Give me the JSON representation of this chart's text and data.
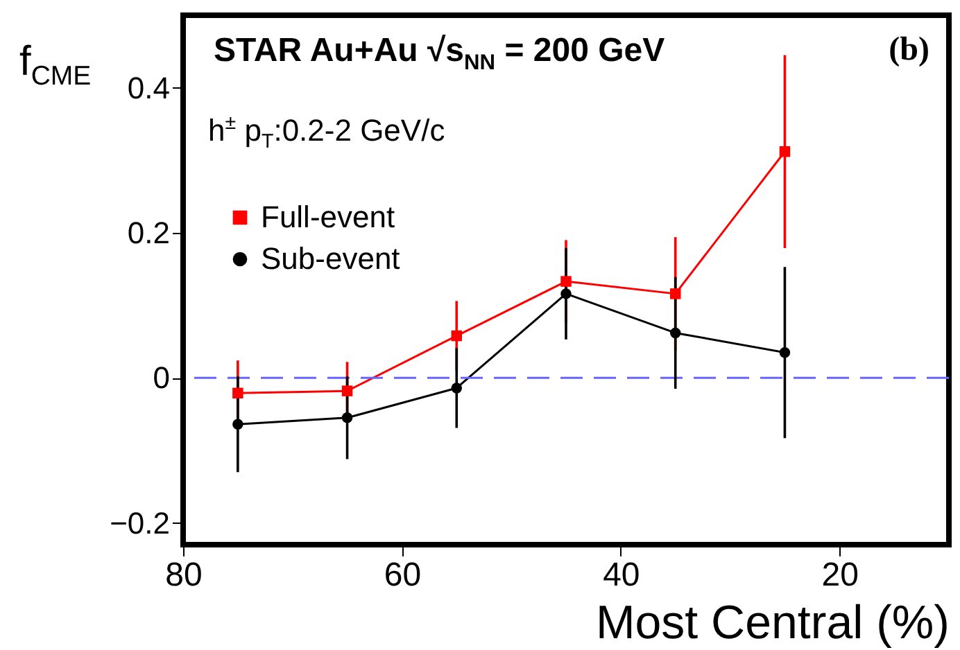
{
  "chart_data": {
    "type": "line",
    "title": "STAR Au+Au √s$_{NN}$ = 200 GeV",
    "xlabel": "Most Central (%)",
    "ylabel": "f$_{CME}$",
    "annotations": [
      "(b)",
      "h$^{±}$ p$_{T}$:0.2-2 GeV/c"
    ],
    "x": [
      75,
      65,
      55,
      45,
      35,
      25
    ],
    "series": [
      {
        "name": "Full-event",
        "color": "#ff0000",
        "marker": "square",
        "values": [
          -0.021,
          -0.018,
          0.058,
          0.133,
          0.116,
          0.312
        ],
        "errors": [
          0.045,
          0.04,
          0.048,
          0.057,
          0.078,
          0.133
        ]
      },
      {
        "name": "Sub-event",
        "color": "#000000",
        "marker": "circle",
        "values": [
          -0.064,
          -0.055,
          -0.014,
          0.116,
          0.062,
          0.035
        ],
        "errors": [
          0.066,
          0.057,
          0.055,
          0.063,
          0.077,
          0.118
        ]
      }
    ],
    "xlim": [
      80,
      10
    ],
    "xticks": [
      80,
      60,
      40,
      20
    ],
    "ylim": [
      -0.23,
      0.5
    ],
    "yticks": [
      {
        "value": -0.2,
        "label": "−0.2"
      },
      {
        "value": 0,
        "label": "0"
      },
      0.2,
      0.4
    ],
    "ref_lines": [
      {
        "axis": "y",
        "value": 0,
        "color": "#6666ff",
        "line_style": "dashed"
      }
    ],
    "legend": "top left",
    "grid": false
  }
}
